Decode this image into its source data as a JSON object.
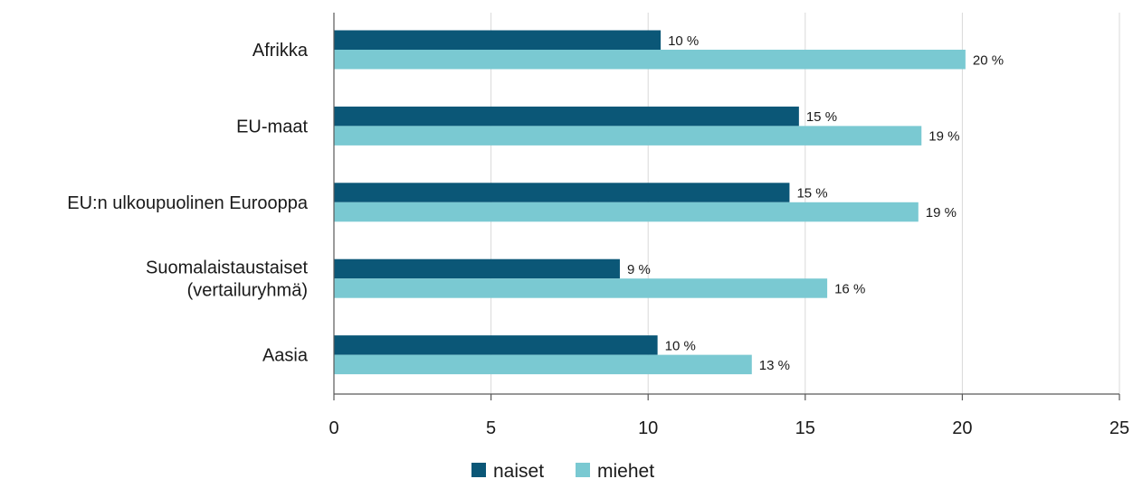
{
  "chart_data": {
    "type": "bar",
    "orientation": "horizontal",
    "title": "",
    "xlabel": "",
    "ylabel": "",
    "xlim": [
      0,
      25
    ],
    "xticks": [
      0,
      5,
      10,
      15,
      20,
      25
    ],
    "grid": true,
    "legend_position": "bottom",
    "categories": [
      [
        "Afrikka"
      ],
      [
        "EU-maat"
      ],
      [
        "EU:n ulkoupuolinen Eurooppa"
      ],
      [
        "Suomalaistaustaiset",
        "(vertailuryhmä)"
      ],
      [
        "Aasia"
      ]
    ],
    "series": [
      {
        "name": "naiset",
        "color": "#0b5777",
        "values": [
          10.4,
          14.8,
          14.5,
          9.1,
          10.3
        ],
        "labels": [
          "10 %",
          "15 %",
          "15 %",
          "9 %",
          "10 %"
        ]
      },
      {
        "name": "miehet",
        "color": "#7ac9d2",
        "values": [
          20.1,
          18.7,
          18.6,
          15.7,
          13.3
        ],
        "labels": [
          "20 %",
          "19 %",
          "19 %",
          "16 %",
          "13 %"
        ]
      }
    ]
  }
}
